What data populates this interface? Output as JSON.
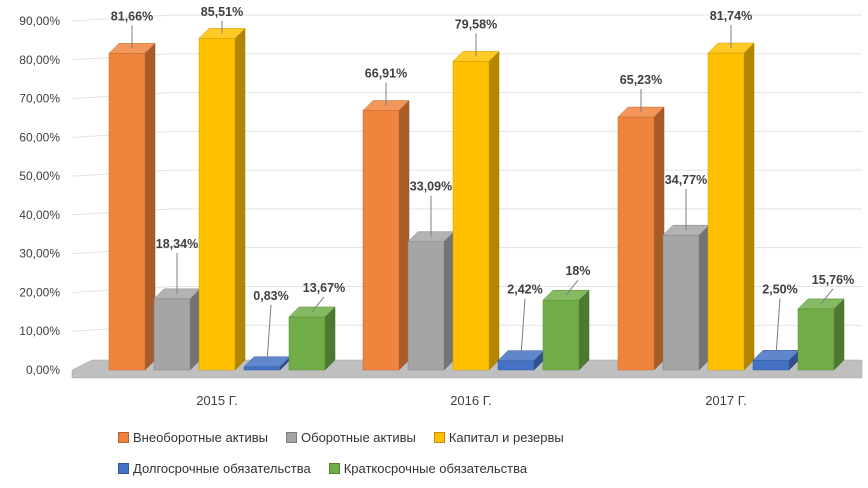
{
  "chart_data": {
    "type": "bar",
    "categories": [
      "2015 Г.",
      "2016 Г.",
      "2017 Г."
    ],
    "series": [
      {
        "name": "Внеоборотные активы",
        "values": [
          81.66,
          66.91,
          65.23
        ],
        "labels": [
          "81,66%",
          "66,91%",
          "65,23%"
        ],
        "color": "#F0843C"
      },
      {
        "name": "Оборотные активы",
        "values": [
          18.34,
          33.09,
          34.77
        ],
        "labels": [
          "18,34%",
          "33,09%",
          "34,77%"
        ],
        "color": "#A5A5A5"
      },
      {
        "name": "Капитал и резервы",
        "values": [
          85.51,
          79.58,
          81.74
        ],
        "labels": [
          "85,51%",
          "79,58%",
          "81,74%"
        ],
        "color": "#FFC000"
      },
      {
        "name": "Долгосрочные обязательства",
        "values": [
          0.83,
          2.42,
          2.5
        ],
        "labels": [
          "0,83%",
          "2,42%",
          "2,50%"
        ],
        "color": "#4472C4"
      },
      {
        "name": "Краткосрочные обязательства",
        "values": [
          13.67,
          18,
          15.76
        ],
        "labels": [
          "13,67%",
          "18%",
          "15,76%"
        ],
        "color": "#70AD47"
      }
    ],
    "yticks": [
      "0,00%",
      "10,00%",
      "20,00%",
      "30,00%",
      "40,00%",
      "50,00%",
      "60,00%",
      "70,00%",
      "80,00%",
      "90,00%"
    ],
    "ylim": [
      0,
      90
    ],
    "grid": true,
    "legend_position": "bottom",
    "title": "",
    "xlabel": "",
    "ylabel": ""
  }
}
